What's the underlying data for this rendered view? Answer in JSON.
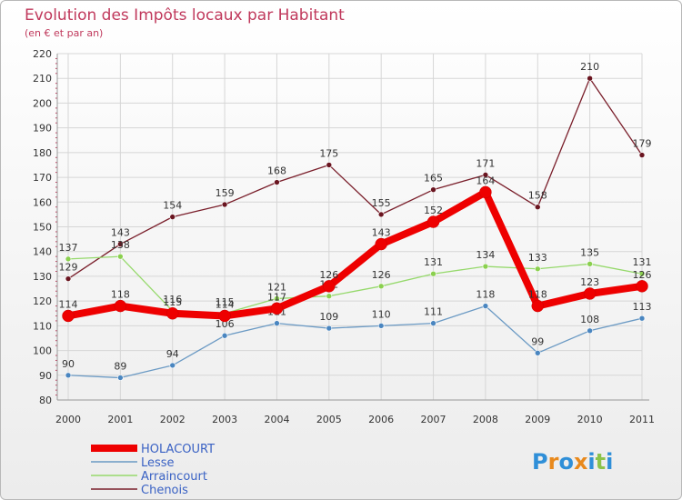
{
  "chart_data": {
    "type": "line",
    "title": "Evolution des Impôts locaux par Habitant",
    "subtitle": "(en € et par an)",
    "xlabel": "",
    "ylabel": "",
    "categories": [
      "2000",
      "2001",
      "2002",
      "2003",
      "2004",
      "2005",
      "2006",
      "2007",
      "2008",
      "2009",
      "2010",
      "2011"
    ],
    "ylim": [
      80,
      220
    ],
    "yticks": [
      80,
      90,
      100,
      110,
      120,
      130,
      140,
      150,
      160,
      170,
      180,
      190,
      200,
      210,
      220
    ],
    "ytick_labels": [
      "80",
      "90",
      "100",
      "110",
      "120",
      "130",
      "140",
      "150",
      "160",
      "170",
      "180",
      "190",
      "200",
      "210",
      "220"
    ],
    "grid": true,
    "legend_position": "bottom-left",
    "series": [
      {
        "name": "Chenois",
        "color": "#7a1f2b",
        "marker": "#6a1520",
        "values": [
          129,
          143,
          154,
          159,
          168,
          175,
          155,
          165,
          171,
          158,
          210,
          179
        ],
        "labels": [
          "129",
          "143",
          "154",
          "159",
          "168",
          "175",
          "155",
          "165",
          "171",
          "158",
          "210",
          "179"
        ]
      },
      {
        "name": "Arraincourt",
        "color": "#96d96c",
        "marker": "#8bd04f",
        "values": [
          137,
          138,
          116,
          115,
          121,
          122,
          126,
          131,
          134,
          133,
          135,
          131
        ],
        "labels": [
          "137",
          "138",
          "116",
          "115",
          "121",
          "122",
          "126",
          "131",
          "134",
          "133",
          "135",
          "131"
        ]
      },
      {
        "name": "Lesse",
        "color": "#6b9ac4",
        "marker": "#4a86c0",
        "values": [
          90,
          89,
          94,
          106,
          111,
          109,
          110,
          111,
          118,
          99,
          108,
          113
        ],
        "labels": [
          "90",
          "89",
          "94",
          "106",
          "111",
          "109",
          "110",
          "111",
          "118",
          "99",
          "108",
          "113"
        ]
      },
      {
        "name": "HOLACOURT",
        "color": "#ee0000",
        "marker": "#ee0000",
        "values": [
          114,
          118,
          115,
          114,
          117,
          126,
          143,
          152,
          164,
          118,
          123,
          126
        ],
        "labels": [
          "114",
          "118",
          "115",
          "114",
          "117",
          "126",
          "143",
          "152",
          "164",
          "118",
          "123",
          "126"
        ]
      }
    ],
    "legend_order": [
      "HOLACOURT",
      "Lesse",
      "Arraincourt",
      "Chenois"
    ]
  },
  "logo": {
    "letters": [
      "P",
      "r",
      "o",
      "x",
      "i",
      "t",
      "i"
    ],
    "colors": [
      "#2f8fd8",
      "#e8891c",
      "#2f8fd8",
      "#e8891c",
      "#2f8fd8",
      "#8bc34a",
      "#2f8fd8"
    ]
  }
}
